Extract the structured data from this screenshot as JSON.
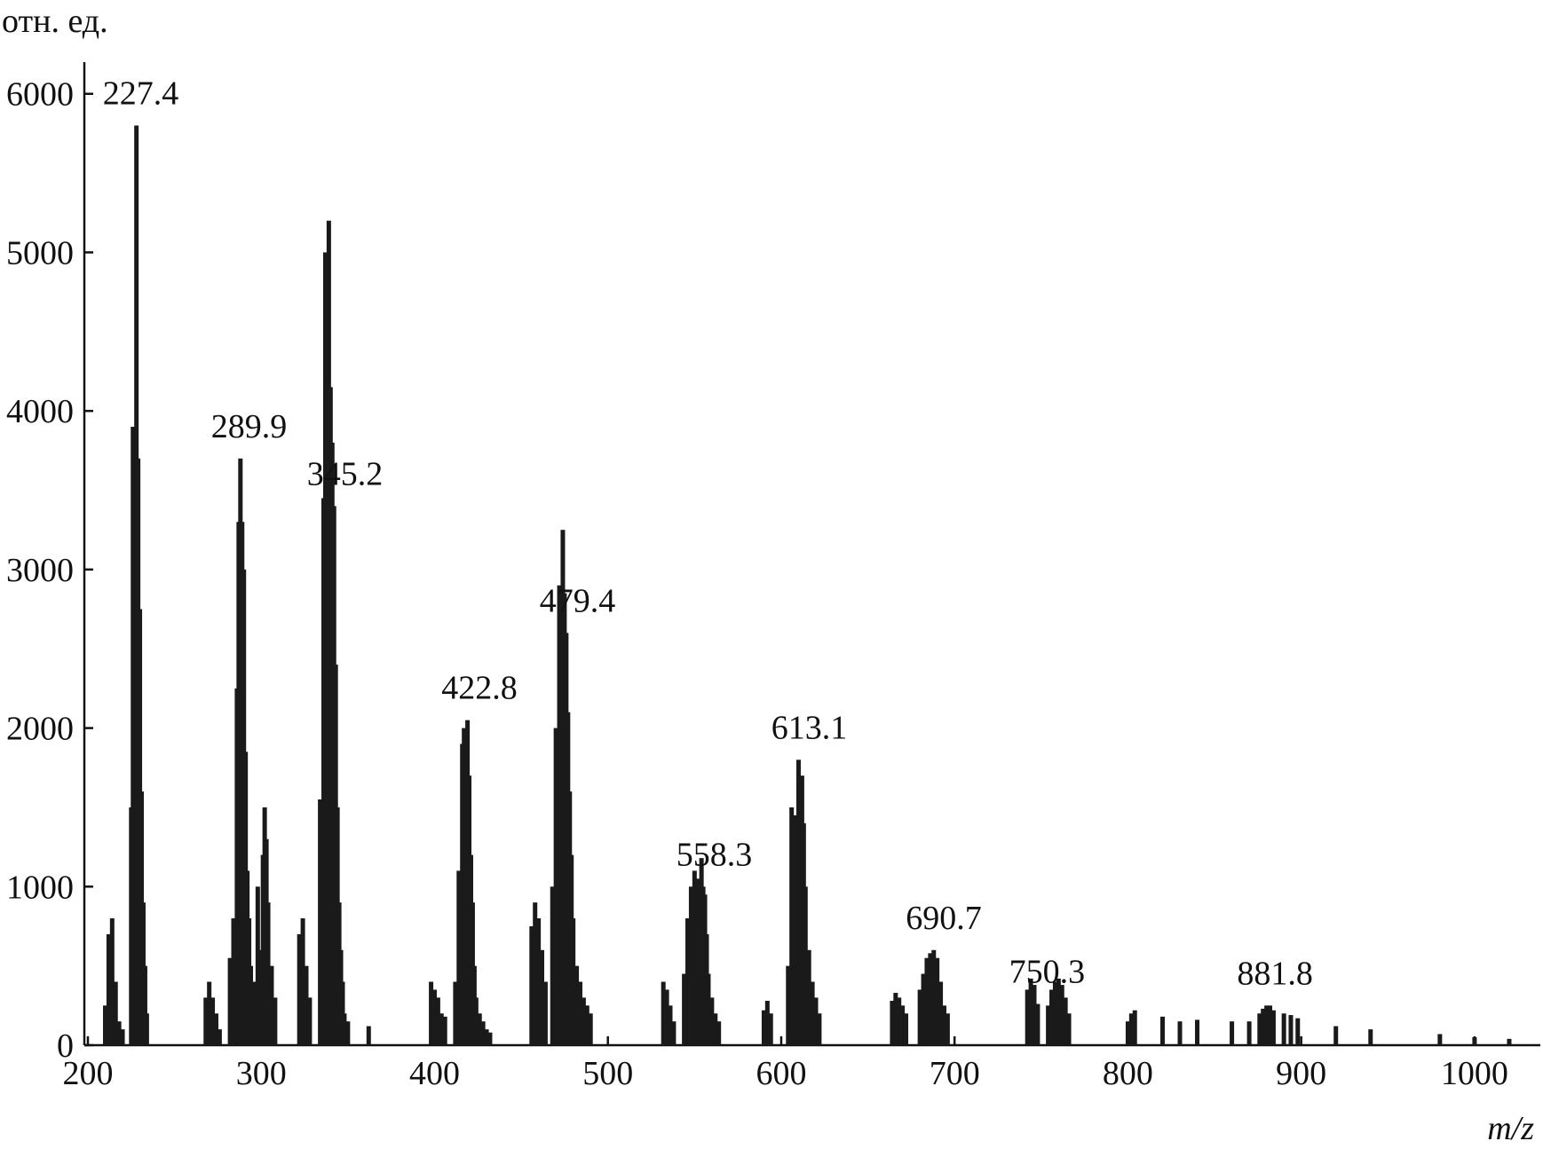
{
  "chart_data": {
    "type": "bar",
    "title": "",
    "ylabel": "отн. ед.",
    "xlabel": "m/z",
    "xlim": [
      200,
      1040
    ],
    "ylim": [
      0,
      6200
    ],
    "x_ticks": [
      200,
      300,
      400,
      500,
      600,
      700,
      800,
      900,
      1000
    ],
    "y_ticks": [
      0,
      1000,
      2000,
      3000,
      4000,
      5000,
      6000
    ],
    "grid": false,
    "legend": "none",
    "bar_color": "#1a1a1a",
    "peak_labels": [
      {
        "text": "227.4",
        "x": 227.4
      },
      {
        "text": "289.9",
        "x": 289.9
      },
      {
        "text": "345.2",
        "x": 345.2
      },
      {
        "text": "422.8",
        "x": 422.8
      },
      {
        "text": "479.4",
        "x": 479.4
      },
      {
        "text": "558.3",
        "x": 558.3
      },
      {
        "text": "613.1",
        "x": 613.1
      },
      {
        "text": "690.7",
        "x": 690.7
      },
      {
        "text": "750.3",
        "x": 750.3
      },
      {
        "text": "881.8",
        "x": 881.8
      }
    ],
    "x": [
      210,
      212,
      214,
      216,
      218,
      220,
      225,
      226,
      227,
      228,
      229,
      230,
      231,
      232,
      233,
      234,
      268,
      270,
      272,
      274,
      276,
      282,
      284,
      286,
      287,
      288,
      289,
      290,
      291,
      292,
      293,
      294,
      296,
      298,
      300,
      301,
      302,
      303,
      304,
      306,
      308,
      322,
      324,
      326,
      328,
      334,
      336,
      337,
      338,
      339,
      340,
      341,
      342,
      343,
      344,
      345,
      346,
      347,
      348,
      350,
      362,
      398,
      400,
      402,
      404,
      406,
      412,
      414,
      416,
      417,
      418,
      419,
      420,
      421,
      422,
      423,
      424,
      426,
      428,
      430,
      432,
      456,
      458,
      460,
      462,
      464,
      468,
      470,
      472,
      473,
      474,
      475,
      476,
      477,
      478,
      479,
      480,
      482,
      484,
      486,
      488,
      490,
      532,
      534,
      536,
      538,
      544,
      546,
      548,
      550,
      552,
      554,
      555,
      556,
      557,
      558,
      560,
      562,
      564,
      590,
      592,
      594,
      604,
      606,
      608,
      610,
      612,
      613,
      614,
      616,
      618,
      620,
      622,
      664,
      666,
      668,
      670,
      672,
      680,
      682,
      684,
      686,
      688,
      690,
      692,
      694,
      696,
      742,
      744,
      746,
      748,
      754,
      756,
      758,
      760,
      762,
      764,
      766,
      800,
      802,
      804,
      820,
      830,
      840,
      860,
      870,
      876,
      878,
      880,
      882,
      884,
      890,
      894,
      898,
      920,
      940,
      980,
      1000,
      1020
    ],
    "y": [
      250,
      700,
      800,
      400,
      150,
      100,
      1500,
      3900,
      2900,
      5800,
      3700,
      2750,
      1600,
      900,
      500,
      200,
      300,
      400,
      300,
      200,
      100,
      550,
      800,
      2250,
      3300,
      3700,
      3300,
      3000,
      1850,
      1100,
      800,
      500,
      400,
      1000,
      600,
      1200,
      1500,
      1300,
      900,
      500,
      300,
      700,
      800,
      500,
      300,
      1550,
      3450,
      5000,
      4200,
      5200,
      4150,
      3800,
      3400,
      2400,
      1500,
      900,
      600,
      400,
      200,
      150,
      120,
      400,
      350,
      300,
      200,
      180,
      400,
      1100,
      1900,
      2000,
      1750,
      2050,
      1700,
      1200,
      900,
      500,
      300,
      200,
      150,
      100,
      80,
      750,
      900,
      800,
      600,
      400,
      1000,
      2000,
      2900,
      2400,
      3250,
      2850,
      2600,
      2100,
      1600,
      1200,
      800,
      500,
      400,
      300,
      250,
      200,
      400,
      350,
      250,
      150,
      450,
      800,
      1000,
      1100,
      1050,
      1180,
      1000,
      950,
      700,
      450,
      300,
      200,
      150,
      220,
      280,
      200,
      500,
      1500,
      1450,
      1800,
      1700,
      1400,
      1000,
      600,
      400,
      300,
      200,
      280,
      330,
      300,
      250,
      200,
      350,
      450,
      550,
      580,
      600,
      550,
      400,
      250,
      200,
      350,
      420,
      380,
      260,
      250,
      350,
      400,
      420,
      380,
      300,
      200,
      150,
      200,
      220,
      180,
      150,
      160,
      150,
      150,
      200,
      230,
      250,
      250,
      220,
      200,
      190,
      170,
      120,
      100,
      70,
      50,
      40
    ]
  }
}
